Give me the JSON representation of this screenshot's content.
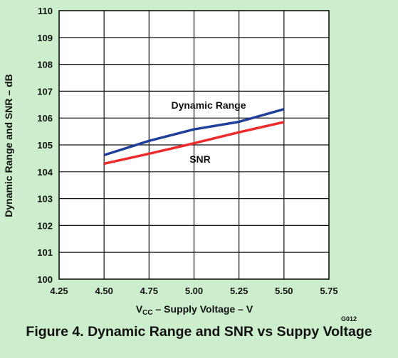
{
  "figure": {
    "code": "G012",
    "caption": "Figure 4. Dynamic Range and SNR vs Suppy Voltage"
  },
  "chart_data": {
    "type": "line",
    "title": "",
    "xlabel": "V",
    "xlabel_sub": "CC",
    "xlabel_rest": " – Supply Voltage – V",
    "ylabel": "Dynamic Range and SNR – dB",
    "xlim": [
      4.25,
      5.75
    ],
    "ylim": [
      100,
      110
    ],
    "x_ticks": [
      "4.25",
      "4.50",
      "4.75",
      "5.00",
      "5.25",
      "5.50",
      "5.75"
    ],
    "y_ticks": [
      "100",
      "101",
      "102",
      "103",
      "104",
      "105",
      "106",
      "107",
      "108",
      "109",
      "110"
    ],
    "grid": true,
    "series": [
      {
        "name": "Dynamic Range",
        "color": "#1f3f99",
        "x": [
          4.5,
          4.75,
          5.0,
          5.25,
          5.5
        ],
        "y": [
          104.62,
          105.15,
          105.58,
          105.86,
          106.33
        ]
      },
      {
        "name": "SNR",
        "color": "#ee2a2a",
        "x": [
          4.5,
          4.75,
          5.0,
          5.25,
          5.5
        ],
        "y": [
          104.3,
          104.67,
          105.06,
          105.47,
          105.85
        ]
      }
    ]
  }
}
